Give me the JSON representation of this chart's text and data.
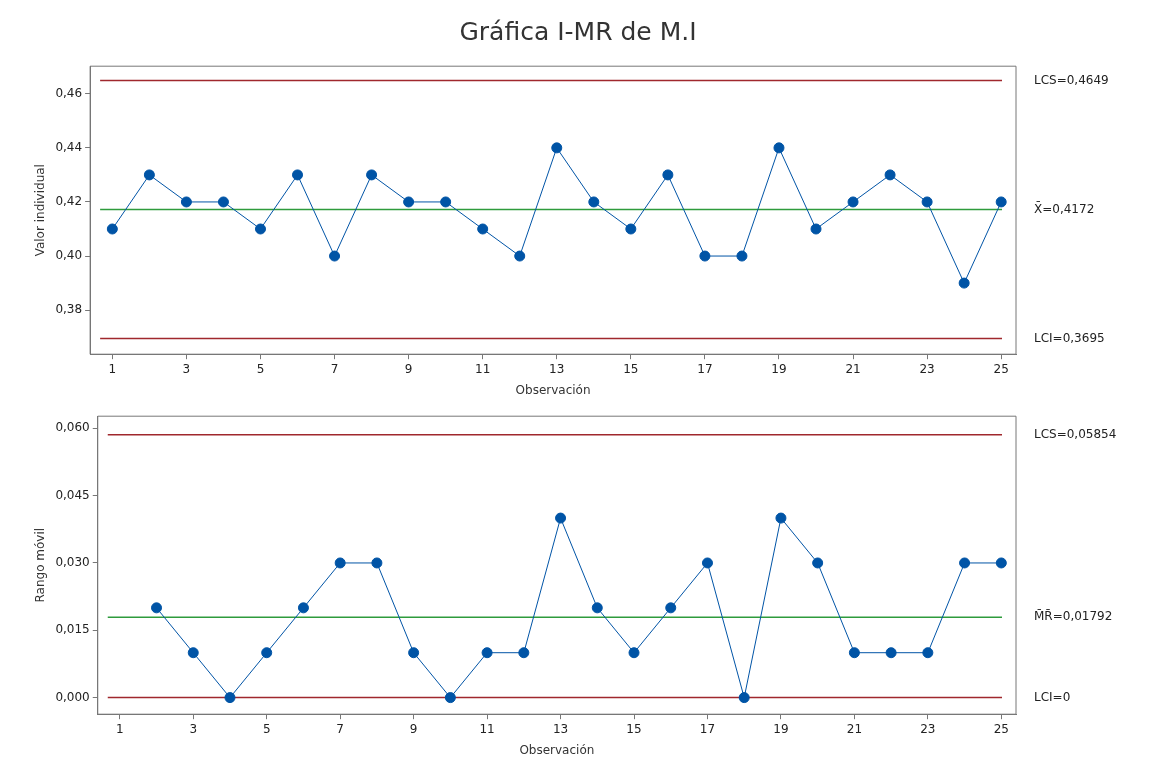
{
  "chart_data": [
    {
      "type": "line",
      "title": "Gráfica I-MR de M.I",
      "xlabel": "Observación",
      "ylabel": "Valor individual",
      "x": [
        1,
        2,
        3,
        4,
        5,
        6,
        7,
        8,
        9,
        10,
        11,
        12,
        13,
        14,
        15,
        16,
        17,
        18,
        19,
        20,
        21,
        22,
        23,
        24,
        25
      ],
      "series": [
        {
          "color": "#0054a6",
          "values": [
            0.41,
            0.43,
            0.42,
            0.42,
            0.41,
            0.43,
            0.4,
            0.43,
            0.42,
            0.42,
            0.41,
            0.4,
            0.44,
            0.42,
            0.41,
            0.43,
            0.4,
            0.4,
            0.44,
            0.41,
            0.42,
            0.43,
            0.42,
            0.39,
            0.42
          ]
        }
      ],
      "marker": "circle",
      "line_style": "solid",
      "grid": false,
      "legend": false,
      "xlim": [
        0.4,
        25.4
      ],
      "xticks": [
        1,
        3,
        5,
        7,
        9,
        11,
        13,
        15,
        17,
        19,
        21,
        23,
        25
      ],
      "ylim": [
        0.3637,
        0.4702
      ],
      "yticks": [
        {
          "value": 0.38,
          "label": "0,38"
        },
        {
          "value": 0.4,
          "label": "0,40"
        },
        {
          "value": 0.42,
          "label": "0,42"
        },
        {
          "value": 0.44,
          "label": "0,44"
        },
        {
          "value": 0.46,
          "label": "0,46"
        }
      ],
      "ref_lines": [
        {
          "axis": "y",
          "value": 0.4649,
          "label": "LCS=0,4649",
          "color": "#a0282d"
        },
        {
          "axis": "y",
          "value": 0.4172,
          "label": "X̄=0,4172",
          "color": "#2e9b3c"
        },
        {
          "axis": "y",
          "value": 0.3695,
          "label": "LCI=0,3695",
          "color": "#a0282d"
        }
      ]
    },
    {
      "type": "line",
      "xlabel": "Observación",
      "ylabel": "Rango móvil",
      "series": [
        {
          "color": "#0054a6",
          "x": [
            2,
            3,
            4,
            5,
            6,
            7,
            8,
            9,
            10,
            11,
            12,
            13,
            14,
            15,
            16,
            17,
            18,
            19,
            20,
            21,
            22,
            23,
            24,
            25
          ],
          "values": [
            0.02,
            0.01,
            0,
            0.01,
            0.02,
            0.03,
            0.03,
            0.01,
            0,
            0.01,
            0.01,
            0.04,
            0.02,
            0.01,
            0.02,
            0.03,
            0,
            0.04,
            0.03,
            0.01,
            0.01,
            0.01,
            0.03,
            0.03
          ]
        }
      ],
      "marker": "circle",
      "line_style": "solid",
      "grid": false,
      "legend": false,
      "xlim": [
        0.4,
        25.4
      ],
      "xticks": [
        1,
        3,
        5,
        7,
        9,
        11,
        13,
        15,
        17,
        19,
        21,
        23,
        25
      ],
      "ylim": [
        -0.0037,
        0.0627
      ],
      "yticks": [
        {
          "value": 0,
          "label": "0,000"
        },
        {
          "value": 0.015,
          "label": "0,015"
        },
        {
          "value": 0.03,
          "label": "0,030"
        },
        {
          "value": 0.045,
          "label": "0,045"
        },
        {
          "value": 0.06,
          "label": "0,060"
        }
      ],
      "ref_lines": [
        {
          "axis": "y",
          "value": 0.05854,
          "label": "LCS=0,05854",
          "color": "#a0282d"
        },
        {
          "axis": "y",
          "value": 0.01792,
          "label": "M̄R̄=0,01792",
          "color": "#2e9b3c"
        },
        {
          "axis": "y",
          "value": 0,
          "label": "LCI=0",
          "color": "#a0282d"
        }
      ]
    }
  ]
}
